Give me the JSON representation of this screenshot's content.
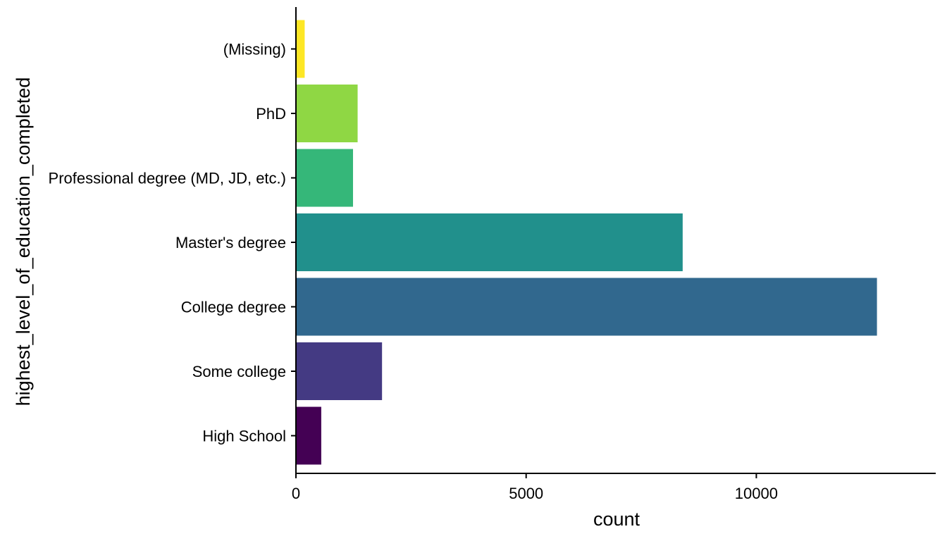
{
  "chart_data": {
    "type": "bar",
    "orientation": "horizontal",
    "categories": [
      "High School",
      "Some college",
      "College degree",
      "Master's degree",
      "Professional degree (MD, JD, etc.)",
      "PhD",
      "(Missing)"
    ],
    "values": [
      550,
      1870,
      12620,
      8400,
      1240,
      1340,
      190
    ],
    "colors": [
      "#440154",
      "#443A83",
      "#31688E",
      "#21908C",
      "#35B779",
      "#8FD744",
      "#FDE725"
    ],
    "xlabel": "count",
    "ylabel": "highest_level_of_education_completed",
    "xticks": [
      0,
      5000,
      10000
    ],
    "xtick_labels": [
      "0",
      "5000",
      "10000"
    ],
    "xlim": [
      0,
      13900
    ],
    "grid": false,
    "legend": "none"
  }
}
